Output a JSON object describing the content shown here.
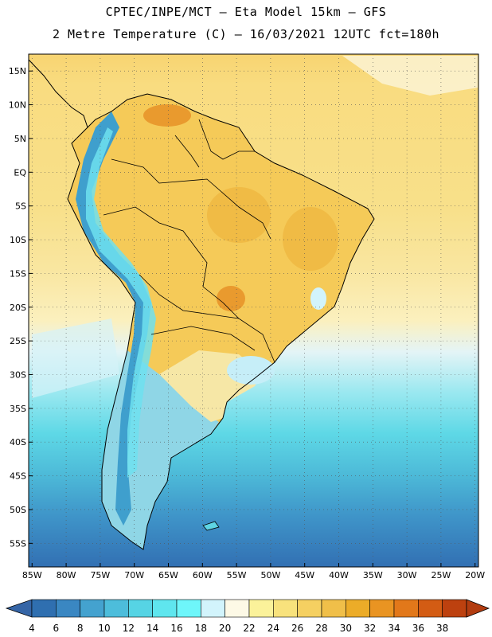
{
  "header": {
    "line1": "CPTEC/INPE/MCT –  Eta Model 15km – GFS",
    "line2": "2 Metre Temperature (C) – 16/03/2021 12UTC fct=180h"
  },
  "map": {
    "lon_range": [
      -85.5,
      -19.5
    ],
    "lat_range": [
      -58.5,
      17.5
    ],
    "grid": "dotted",
    "lat_ticks": [
      {
        "v": 15,
        "label": "15N"
      },
      {
        "v": 10,
        "label": "10N"
      },
      {
        "v": 5,
        "label": "5N"
      },
      {
        "v": 0,
        "label": "EQ"
      },
      {
        "v": -5,
        "label": "5S"
      },
      {
        "v": -10,
        "label": "10S"
      },
      {
        "v": -15,
        "label": "15S"
      },
      {
        "v": -20,
        "label": "20S"
      },
      {
        "v": -25,
        "label": "25S"
      },
      {
        "v": -30,
        "label": "30S"
      },
      {
        "v": -35,
        "label": "35S"
      },
      {
        "v": -40,
        "label": "40S"
      },
      {
        "v": -45,
        "label": "45S"
      },
      {
        "v": -50,
        "label": "50S"
      },
      {
        "v": -55,
        "label": "55S"
      }
    ],
    "lon_ticks": [
      {
        "v": -85,
        "label": "85W"
      },
      {
        "v": -80,
        "label": "80W"
      },
      {
        "v": -75,
        "label": "75W"
      },
      {
        "v": -70,
        "label": "70W"
      },
      {
        "v": -65,
        "label": "65W"
      },
      {
        "v": -60,
        "label": "60W"
      },
      {
        "v": -55,
        "label": "55W"
      },
      {
        "v": -50,
        "label": "50W"
      },
      {
        "v": -45,
        "label": "45W"
      },
      {
        "v": -40,
        "label": "40W"
      },
      {
        "v": -35,
        "label": "35W"
      },
      {
        "v": -30,
        "label": "30W"
      },
      {
        "v": -25,
        "label": "25W"
      },
      {
        "v": -20,
        "label": "20W"
      }
    ]
  },
  "colorbar": {
    "labels": [
      "4",
      "6",
      "8",
      "10",
      "12",
      "14",
      "16",
      "18",
      "20",
      "22",
      "24",
      "26",
      "28",
      "30",
      "32",
      "34",
      "36",
      "38"
    ],
    "colors": [
      "#2f6fb0",
      "#3a87c2",
      "#44a2cf",
      "#4dbddb",
      "#56d4e4",
      "#5fe6ee",
      "#6ef6fa",
      "#d2f4fc",
      "#fdf9e6",
      "#fbf29a",
      "#f8e27c",
      "#f5d061",
      "#f0bf49",
      "#ecac28",
      "#e99422",
      "#e2781a",
      "#d35c14",
      "#bd410f"
    ],
    "low_color": "#3565a6",
    "high_color": "#b23c10"
  }
}
